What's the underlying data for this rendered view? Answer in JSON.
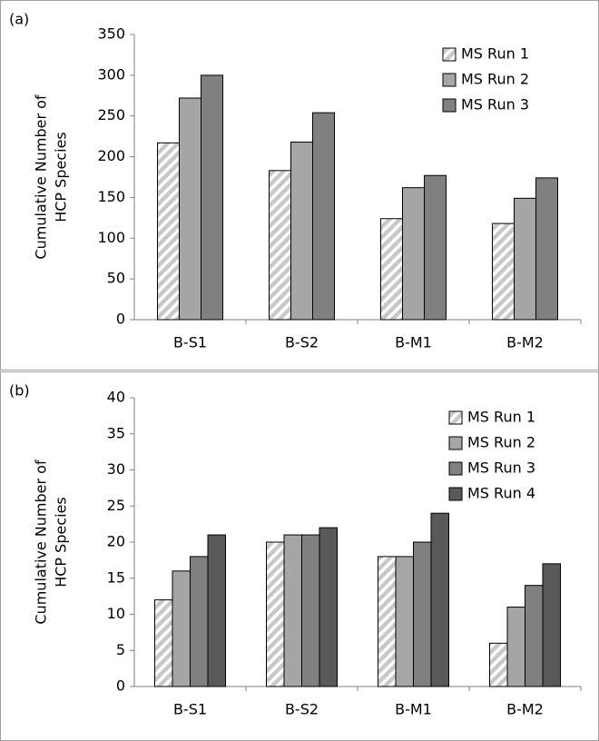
{
  "chart_data": [
    {
      "type": "bar",
      "panel_label": "(a)",
      "ylabel": [
        "Cumulative Number of",
        "HCP Species"
      ],
      "categories": [
        "B-S1",
        "B-S2",
        "B-M1",
        "B-M2"
      ],
      "ylim": [
        0,
        350
      ],
      "yticks": [
        0,
        50,
        100,
        150,
        200,
        250,
        300,
        350
      ],
      "legend": "upper-right",
      "series": [
        {
          "name": "MS Run 1",
          "color": "#c8c8c8",
          "pattern": "hatch",
          "values": [
            217,
            183,
            124,
            118
          ]
        },
        {
          "name": "MS Run 2",
          "color": "#a6a6a6",
          "values": [
            272,
            218,
            162,
            149
          ]
        },
        {
          "name": "MS Run 3",
          "color": "#808080",
          "values": [
            300,
            254,
            177,
            174
          ]
        }
      ]
    },
    {
      "type": "bar",
      "panel_label": "(b)",
      "ylabel": [
        "Cumulative Number of",
        "HCP Species"
      ],
      "categories": [
        "B-S1",
        "B-S2",
        "B-M1",
        "B-M2"
      ],
      "ylim": [
        0,
        40
      ],
      "yticks": [
        0,
        5,
        10,
        15,
        20,
        25,
        30,
        35,
        40
      ],
      "legend": "upper-right",
      "series": [
        {
          "name": "MS Run 1",
          "color": "#c8c8c8",
          "pattern": "hatch",
          "values": [
            12,
            20,
            18,
            6
          ]
        },
        {
          "name": "MS Run 2",
          "color": "#a6a6a6",
          "values": [
            16,
            21,
            18,
            11
          ]
        },
        {
          "name": "MS Run 3",
          "color": "#808080",
          "values": [
            18,
            21,
            20,
            14
          ]
        },
        {
          "name": "MS Run 4",
          "color": "#595959",
          "values": [
            21,
            22,
            24,
            17
          ]
        }
      ]
    }
  ]
}
